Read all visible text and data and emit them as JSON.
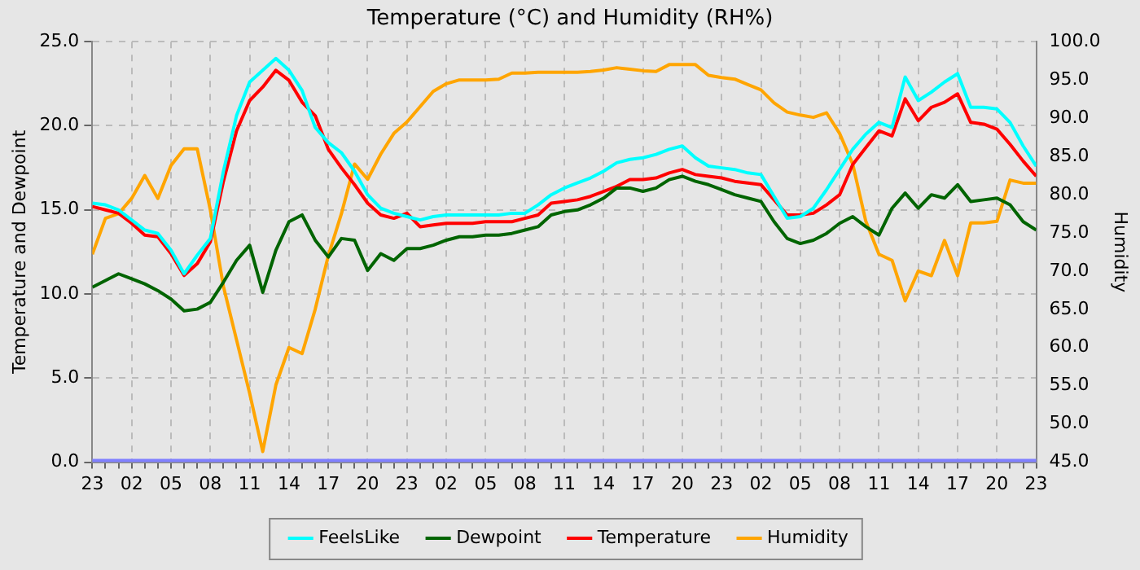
{
  "chart_data": {
    "type": "line",
    "title": "Temperature (°C) and Humidity (RH%)",
    "ylabel": "Temperature and Dewpoint",
    "y2label": "Humidity",
    "categories": [
      "23",
      null,
      null,
      "02",
      null,
      null,
      "05",
      null,
      null,
      "08",
      null,
      null,
      "11",
      null,
      null,
      "14",
      null,
      null,
      "17",
      null,
      null,
      "20",
      null,
      null,
      "23",
      null,
      null,
      "02",
      null,
      null,
      "05",
      null,
      null,
      "08",
      null,
      null,
      "11",
      null,
      null,
      "14",
      null,
      null,
      "17",
      null,
      null,
      "20",
      null,
      null,
      "23",
      null,
      null,
      "02",
      null,
      null,
      "05",
      null,
      null,
      "08",
      null,
      null,
      "11",
      null,
      null,
      "14",
      null,
      null,
      "17",
      null,
      null,
      "20",
      null,
      null,
      "23"
    ],
    "ylim": [
      0,
      25
    ],
    "yticks": [
      {
        "value": 0,
        "label": "0.0"
      },
      {
        "value": 5,
        "label": "5.0"
      },
      {
        "value": 10,
        "label": "10.0"
      },
      {
        "value": 15,
        "label": "15.0"
      },
      {
        "value": 20,
        "label": "20.0"
      },
      {
        "value": 25,
        "label": "25.0"
      }
    ],
    "y2lim": [
      45,
      100
    ],
    "y2ticks": [
      {
        "value": 45,
        "label": "45.0"
      },
      {
        "value": 50,
        "label": "50.0"
      },
      {
        "value": 55,
        "label": "55.0"
      },
      {
        "value": 60,
        "label": "60.0"
      },
      {
        "value": 65,
        "label": "65.0"
      },
      {
        "value": 70,
        "label": "70.0"
      },
      {
        "value": 75,
        "label": "75.0"
      },
      {
        "value": 80,
        "label": "80.0"
      },
      {
        "value": 85,
        "label": "85.0"
      },
      {
        "value": 90,
        "label": "90.0"
      },
      {
        "value": 95,
        "label": "95.0"
      },
      {
        "value": 100,
        "label": "100.0"
      }
    ],
    "grid": true,
    "legend": "bottom",
    "line_style": "solid",
    "ref_lines": [
      {
        "axis": "y",
        "value": 0,
        "color": "#8080ff"
      }
    ],
    "series": [
      {
        "name": "FeelsLike",
        "color": "#00ffff",
        "values": [
          15.4,
          15.3,
          15.0,
          14.4,
          13.8,
          13.6,
          12.6,
          11.2,
          12.3,
          13.3,
          17.3,
          20.6,
          22.6,
          23.3,
          24.0,
          23.3,
          22.1,
          19.9,
          19.0,
          18.4,
          17.3,
          15.9,
          15.1,
          14.8,
          14.6,
          14.4,
          14.6,
          14.7,
          14.7,
          14.7,
          14.7,
          14.7,
          14.8,
          14.8,
          15.3,
          15.9,
          16.3,
          16.6,
          16.9,
          17.3,
          17.8,
          18.0,
          18.1,
          18.3,
          18.6,
          18.8,
          18.1,
          17.6,
          17.5,
          17.4,
          17.2,
          17.1,
          15.8,
          14.5,
          14.6,
          15.1,
          16.2,
          17.4,
          18.6,
          19.5,
          20.2,
          19.9,
          22.9,
          21.5,
          22.0,
          22.6,
          23.1,
          21.1,
          21.1,
          21.0,
          20.2,
          18.8,
          17.6
        ]
      },
      {
        "name": "Dewpoint",
        "color": "#006400",
        "values": [
          10.4,
          10.8,
          11.2,
          10.9,
          10.6,
          10.2,
          9.7,
          9.0,
          9.1,
          9.5,
          10.7,
          12.0,
          12.9,
          10.1,
          12.6,
          14.3,
          14.7,
          13.2,
          12.2,
          13.3,
          13.2,
          11.4,
          12.4,
          12.0,
          12.7,
          12.7,
          12.9,
          13.2,
          13.4,
          13.4,
          13.5,
          13.5,
          13.6,
          13.8,
          14.0,
          14.7,
          14.9,
          15.0,
          15.3,
          15.7,
          16.3,
          16.3,
          16.1,
          16.3,
          16.8,
          17.0,
          16.7,
          16.5,
          16.2,
          15.9,
          15.7,
          15.5,
          14.3,
          13.3,
          13.0,
          13.2,
          13.6,
          14.2,
          14.6,
          14.0,
          13.5,
          15.1,
          16.0,
          15.1,
          15.9,
          15.7,
          16.5,
          15.5,
          15.6,
          15.7,
          15.3,
          14.3,
          13.8
        ]
      },
      {
        "name": "Temperature",
        "color": "#ff0000",
        "values": [
          15.2,
          15.0,
          14.8,
          14.2,
          13.5,
          13.4,
          12.4,
          11.1,
          11.8,
          13.1,
          16.7,
          19.7,
          21.5,
          22.3,
          23.3,
          22.7,
          21.4,
          20.6,
          18.6,
          17.5,
          16.5,
          15.4,
          14.7,
          14.5,
          14.8,
          14.0,
          14.1,
          14.2,
          14.2,
          14.2,
          14.3,
          14.3,
          14.3,
          14.5,
          14.7,
          15.4,
          15.5,
          15.6,
          15.8,
          16.1,
          16.4,
          16.8,
          16.8,
          16.9,
          17.2,
          17.4,
          17.1,
          17.0,
          16.9,
          16.7,
          16.6,
          16.5,
          15.6,
          14.7,
          14.7,
          14.8,
          15.3,
          15.9,
          17.7,
          18.7,
          19.7,
          19.4,
          21.6,
          20.3,
          21.1,
          21.4,
          21.9,
          20.2,
          20.1,
          19.8,
          18.9,
          17.9,
          17.0
        ]
      },
      {
        "name": "Humidity",
        "color": "#ffa500",
        "axis": "y2",
        "values": [
          72.2,
          76.9,
          77.5,
          79.5,
          82.5,
          79.5,
          83.8,
          86.0,
          86.0,
          78.0,
          68.0,
          61.0,
          54.0,
          46.4,
          55.1,
          60.0,
          59.2,
          65.0,
          72.0,
          77.5,
          84.0,
          82.0,
          85.3,
          88.0,
          89.5,
          91.5,
          93.5,
          94.5,
          95.0,
          95.0,
          95.0,
          95.1,
          95.9,
          95.9,
          96.0,
          96.0,
          96.0,
          96.0,
          96.1,
          96.3,
          96.6,
          96.4,
          96.2,
          96.1,
          97.0,
          97.0,
          97.0,
          95.6,
          95.3,
          95.1,
          94.4,
          93.7,
          92.0,
          90.8,
          90.4,
          90.1,
          90.7,
          88.0,
          84.0,
          76.5,
          72.2,
          71.4,
          66.1,
          70.0,
          69.4,
          74.0,
          69.4,
          76.3,
          76.3,
          76.5,
          81.9,
          81.5,
          81.5
        ]
      }
    ]
  }
}
